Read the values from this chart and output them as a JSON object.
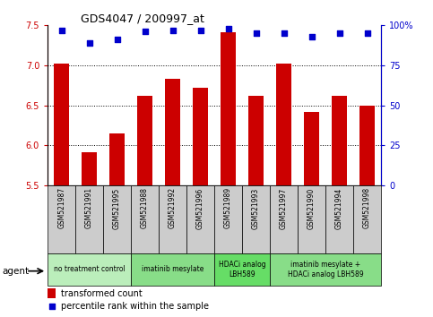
{
  "title": "GDS4047 / 200997_at",
  "samples": [
    "GSM521987",
    "GSM521991",
    "GSM521995",
    "GSM521988",
    "GSM521992",
    "GSM521996",
    "GSM521989",
    "GSM521993",
    "GSM521997",
    "GSM521990",
    "GSM521994",
    "GSM521998"
  ],
  "bar_values": [
    7.02,
    5.92,
    6.15,
    6.62,
    6.83,
    6.72,
    7.41,
    6.62,
    7.02,
    6.42,
    6.62,
    6.5
  ],
  "dot_values": [
    97,
    89,
    91,
    96,
    97,
    97,
    98,
    95,
    95,
    93,
    95,
    95
  ],
  "bar_color": "#cc0000",
  "dot_color": "#0000cc",
  "ylim_left": [
    5.5,
    7.5
  ],
  "ylim_right": [
    0,
    100
  ],
  "yticks_left": [
    5.5,
    6.0,
    6.5,
    7.0,
    7.5
  ],
  "yticks_right": [
    0,
    25,
    50,
    75,
    100
  ],
  "ytick_labels_right": [
    "0",
    "25",
    "50",
    "75",
    "100%"
  ],
  "groups": [
    {
      "label": "no treatment control",
      "start": 0,
      "end": 3,
      "color": "#bbeebb"
    },
    {
      "label": "imatinib mesylate",
      "start": 3,
      "end": 6,
      "color": "#88dd88"
    },
    {
      "label": "HDACi analog\nLBH589",
      "start": 6,
      "end": 8,
      "color": "#66dd66"
    },
    {
      "label": "imatinib mesylate +\nHDACi analog LBH589",
      "start": 8,
      "end": 12,
      "color": "#88dd88"
    }
  ],
  "agent_label": "agent",
  "legend_bar_label": "transformed count",
  "legend_dot_label": "percentile rank within the sample",
  "sample_bg": "#cccccc",
  "title_fontsize": 9,
  "tick_fontsize": 7,
  "bar_width": 0.55
}
